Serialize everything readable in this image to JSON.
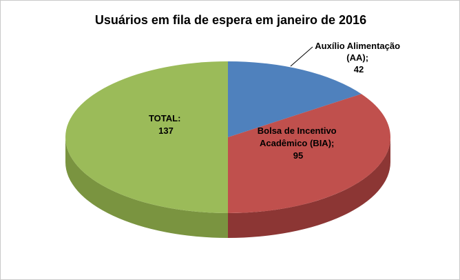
{
  "chart_data": {
    "type": "pie",
    "style": "pie-3d",
    "title": "Usuários em fila de espera em janeiro de 2016",
    "start_angle_deg": 0,
    "direction": "clockwise",
    "legend_position": "none",
    "slices": [
      {
        "name": "Auxílio Alimentação (AA)",
        "value": 42,
        "color": "#4f81bd",
        "side_color": "#38618e"
      },
      {
        "name": "Bolsa de Incentivo Acadêmico (BIA)",
        "value": 95,
        "color": "#c0504d",
        "side_color": "#8c3634"
      },
      {
        "name": "TOTAL",
        "value": 137,
        "color": "#9bbb59",
        "side_color": "#7a9440"
      }
    ]
  },
  "labels": {
    "total": [
      "TOTAL:",
      "137"
    ],
    "bia": [
      "Bolsa de Incentivo",
      "Acadêmico (BIA);",
      "95"
    ],
    "aa": [
      "Auxílio Alimentação",
      "(AA);",
      "42"
    ]
  }
}
